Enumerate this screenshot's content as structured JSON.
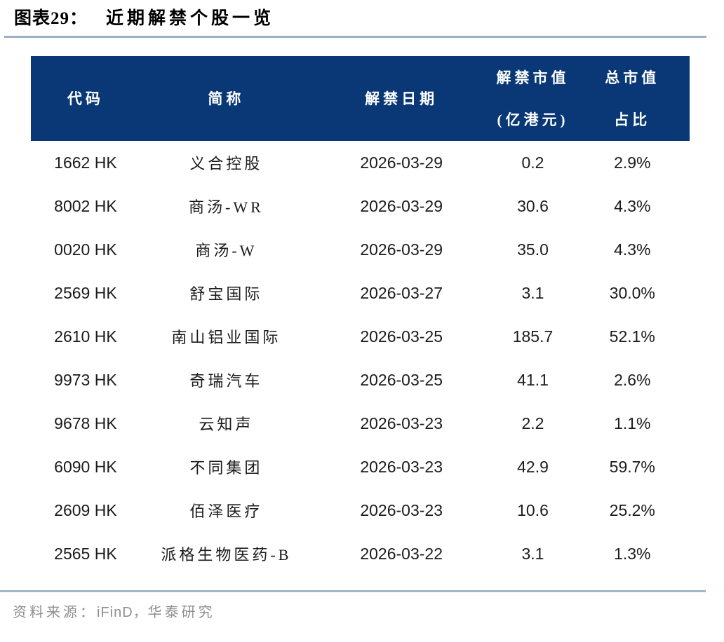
{
  "title": {
    "prefix": "图表29：",
    "main": "近期解禁个股一览"
  },
  "table": {
    "header": {
      "code": "代码",
      "name": "简称",
      "date": "解禁日期",
      "value_line1": "解禁市值",
      "value_line2": "(亿港元)",
      "ratio_line1": "总市值",
      "ratio_line2": "占比"
    },
    "rows": [
      {
        "code": "1662 HK",
        "name": "义合控股",
        "date": "2026-03-29",
        "value": "0.2",
        "ratio": "2.9%"
      },
      {
        "code": "8002 HK",
        "name": "商汤-WR",
        "date": "2026-03-29",
        "value": "30.6",
        "ratio": "4.3%"
      },
      {
        "code": "0020 HK",
        "name": "商汤-W",
        "date": "2026-03-29",
        "value": "35.0",
        "ratio": "4.3%"
      },
      {
        "code": "2569 HK",
        "name": "舒宝国际",
        "date": "2026-03-27",
        "value": "3.1",
        "ratio": "30.0%"
      },
      {
        "code": "2610 HK",
        "name": "南山铝业国际",
        "date": "2026-03-25",
        "value": "185.7",
        "ratio": "52.1%"
      },
      {
        "code": "9973 HK",
        "name": "奇瑞汽车",
        "date": "2026-03-25",
        "value": "41.1",
        "ratio": "2.6%"
      },
      {
        "code": "9678 HK",
        "name": "云知声",
        "date": "2026-03-23",
        "value": "2.2",
        "ratio": "1.1%"
      },
      {
        "code": "6090 HK",
        "name": "不同集团",
        "date": "2026-03-23",
        "value": "42.9",
        "ratio": "59.7%"
      },
      {
        "code": "2609 HK",
        "name": "佰泽医疗",
        "date": "2026-03-23",
        "value": "10.6",
        "ratio": "25.2%"
      },
      {
        "code": "2565 HK",
        "name": "派格生物医药-B",
        "date": "2026-03-22",
        "value": "3.1",
        "ratio": "1.3%"
      }
    ]
  },
  "footer": {
    "label": "资料来源：",
    "source_latin": "iFinD，",
    "source_zh": "华泰研究"
  },
  "colors": {
    "header_bg": "#0a3876",
    "header_text": "#ffffff",
    "accent_rule": "#9db0c8",
    "footer_rule": "#a4b6ca",
    "body_text": "#1b1b1b",
    "footer_text": "#8f8f8f"
  }
}
